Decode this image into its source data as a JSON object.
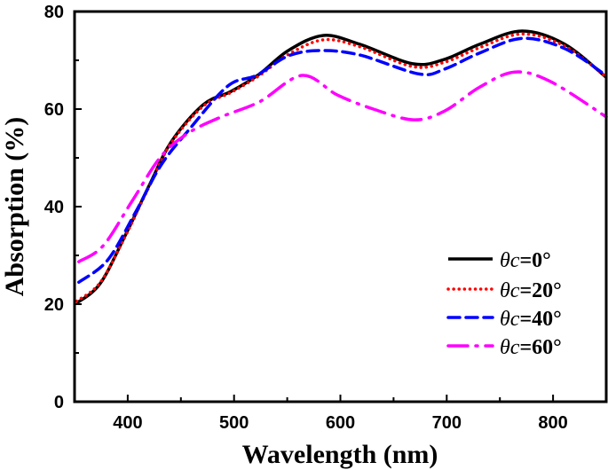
{
  "chart_data": {
    "type": "line",
    "title": "",
    "xlabel": "Wavelength (nm)",
    "ylabel": "Absorption (%)",
    "xlim": [
      350,
      850
    ],
    "ylim": [
      0,
      80
    ],
    "xticks": [
      400,
      500,
      600,
      700,
      800
    ],
    "yticks": [
      0,
      20,
      40,
      60,
      80
    ],
    "grid": false,
    "legend_position": "bottom-right",
    "series": [
      {
        "name_prefix": "θc",
        "name_suffix": "=0°",
        "color": "#000000",
        "dash": "solid",
        "x": [
          352,
          374,
          397,
          421,
          441,
          471,
          497,
          524,
          551,
          584,
          618,
          668,
          698,
          731,
          771,
          811,
          850
        ],
        "y": [
          20.2,
          24.2,
          33.8,
          44.7,
          53.3,
          60.9,
          63.6,
          67.2,
          72,
          75.1,
          73.3,
          69.3,
          70.2,
          73.3,
          76,
          73.3,
          66.5
        ]
      },
      {
        "name_prefix": "θc",
        "name_suffix": "=20°",
        "color": "#ff0000",
        "dash": "dotted",
        "x": [
          352,
          374,
          397,
          421,
          441,
          471,
          497,
          524,
          551,
          584,
          618,
          668,
          698,
          731,
          771,
          811,
          850
        ],
        "y": [
          20.6,
          24.4,
          33.6,
          44.5,
          53.1,
          60.6,
          63.4,
          66.9,
          71.2,
          74.2,
          72.8,
          68.7,
          69.6,
          72.6,
          75.4,
          72.9,
          66.6
        ]
      },
      {
        "name_prefix": "θc",
        "name_suffix": "=40°",
        "color": "#0000ff",
        "dash": "dashed",
        "x": [
          354,
          381,
          407,
          431,
          457,
          494,
          521,
          551,
          581,
          618,
          674,
          698,
          731,
          771,
          811,
          850
        ],
        "y": [
          24.5,
          29,
          38.7,
          48.4,
          55.6,
          64.7,
          66.9,
          70.9,
          72,
          71.1,
          67.2,
          68.2,
          71.5,
          74.5,
          72.4,
          66.9
        ]
      },
      {
        "name_prefix": "θc",
        "name_suffix": "=60°",
        "color": "#ff00ff",
        "dash": "dash-dot",
        "x": [
          354,
          377,
          404,
          431,
          457,
          488,
          524,
          564,
          597,
          631,
          669,
          698,
          731,
          764,
          798,
          850
        ],
        "y": [
          28.7,
          32,
          41.1,
          50.2,
          55.1,
          58.4,
          61.5,
          66.9,
          62.9,
          60,
          57.8,
          59.6,
          64.5,
          67.6,
          65.6,
          58.4
        ]
      }
    ]
  }
}
